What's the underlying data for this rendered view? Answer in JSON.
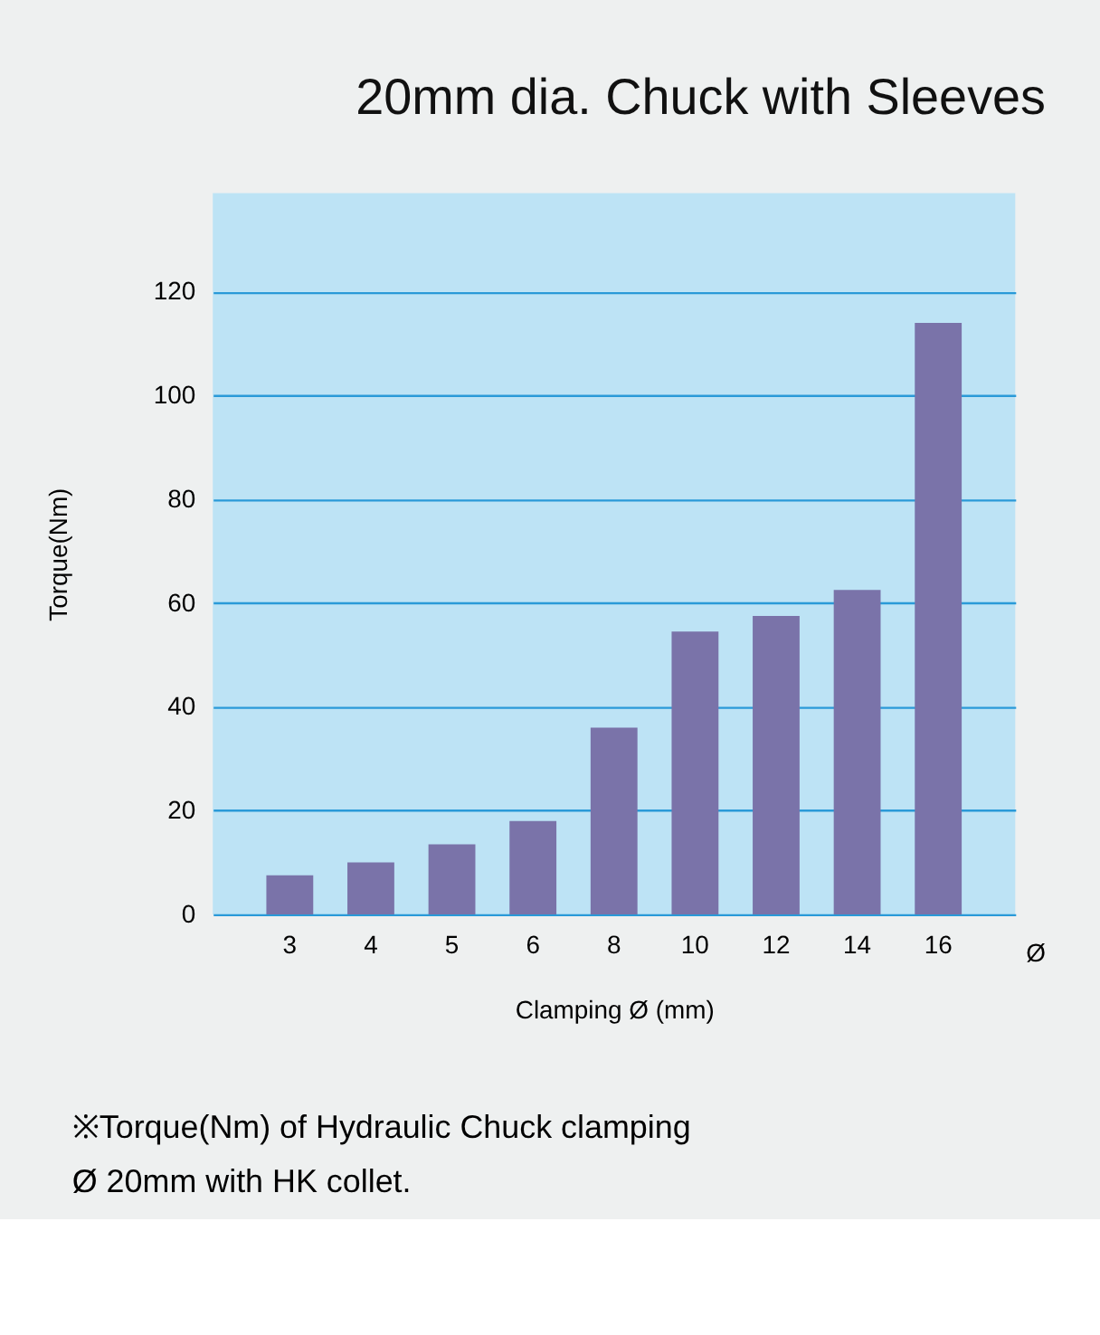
{
  "chart_data": {
    "type": "bar",
    "title": "20mm dia. Chuck with Sleeves",
    "xlabel": "Clamping Ø (mm)",
    "ylabel": "Torque(Nm)",
    "categories": [
      "3",
      "4",
      "5",
      "6",
      "8",
      "10",
      "12",
      "14",
      "16"
    ],
    "series": [
      {
        "color": "#7a73a9",
        "values": [
          7.5,
          10,
          13.5,
          18,
          36,
          54.5,
          57.5,
          62.5,
          114
        ]
      }
    ],
    "ylim": [
      0,
      139
    ],
    "yticks": [
      0,
      20,
      40,
      60,
      80,
      100,
      120
    ],
    "grid": "y",
    "annotations": [
      "Ø",
      "※Torque(Nm) of Hydraulic Chuck clamping\n  Ø 20mm with HK collet."
    ]
  }
}
